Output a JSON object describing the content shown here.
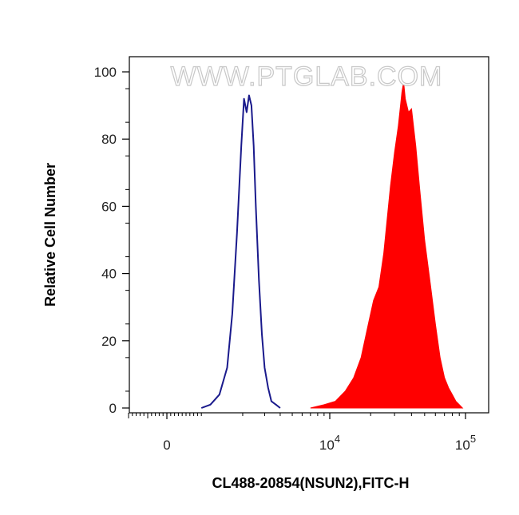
{
  "chart_data": {
    "type": "area",
    "title": "",
    "xlabel": "CL488-20854(NSUN2),FITC-H",
    "ylabel": "Relative Cell Number",
    "x_scale": "biexponential",
    "xlim": [
      -1000,
      120000
    ],
    "ylim": [
      0,
      100
    ],
    "x_tick_labels": [
      {
        "value": 0,
        "text": "0"
      },
      {
        "value": 10000,
        "base": "10",
        "exp": "4"
      },
      {
        "value": 100000,
        "base": "10",
        "exp": "5"
      }
    ],
    "y_ticks": [
      0,
      20,
      40,
      60,
      80,
      100
    ],
    "grid": false,
    "legend": "none",
    "watermark": "WWW.PTGLAB.COM",
    "series": [
      {
        "style": "outline",
        "color": "#1a1a8c",
        "x": [
          900,
          1100,
          1300,
          1500,
          1650,
          1800,
          1950,
          2050,
          2150,
          2250,
          2350,
          2450,
          2550,
          2700,
          2850,
          3000,
          3200,
          3400,
          3700,
          4000
        ],
        "y": [
          0,
          1,
          4,
          12,
          28,
          52,
          78,
          92,
          88,
          93,
          90,
          78,
          60,
          38,
          22,
          12,
          6,
          2,
          1,
          0
        ]
      },
      {
        "style": "filled",
        "color": "#ff0000",
        "x": [
          7000,
          9000,
          11000,
          13000,
          15000,
          17000,
          19000,
          21000,
          23000,
          25000,
          28000,
          30000,
          32000,
          34000,
          35000,
          36000,
          38000,
          40000,
          43000,
          46000,
          50000,
          55000,
          60000,
          65000,
          70000,
          75000,
          80000,
          85000,
          90000,
          95000
        ],
        "y": [
          0,
          1,
          2,
          5,
          9,
          15,
          24,
          32,
          36,
          46,
          66,
          76,
          84,
          94,
          97,
          92,
          88,
          89,
          78,
          65,
          50,
          37,
          25,
          15,
          9,
          6,
          4,
          2,
          1,
          0
        ]
      }
    ]
  }
}
